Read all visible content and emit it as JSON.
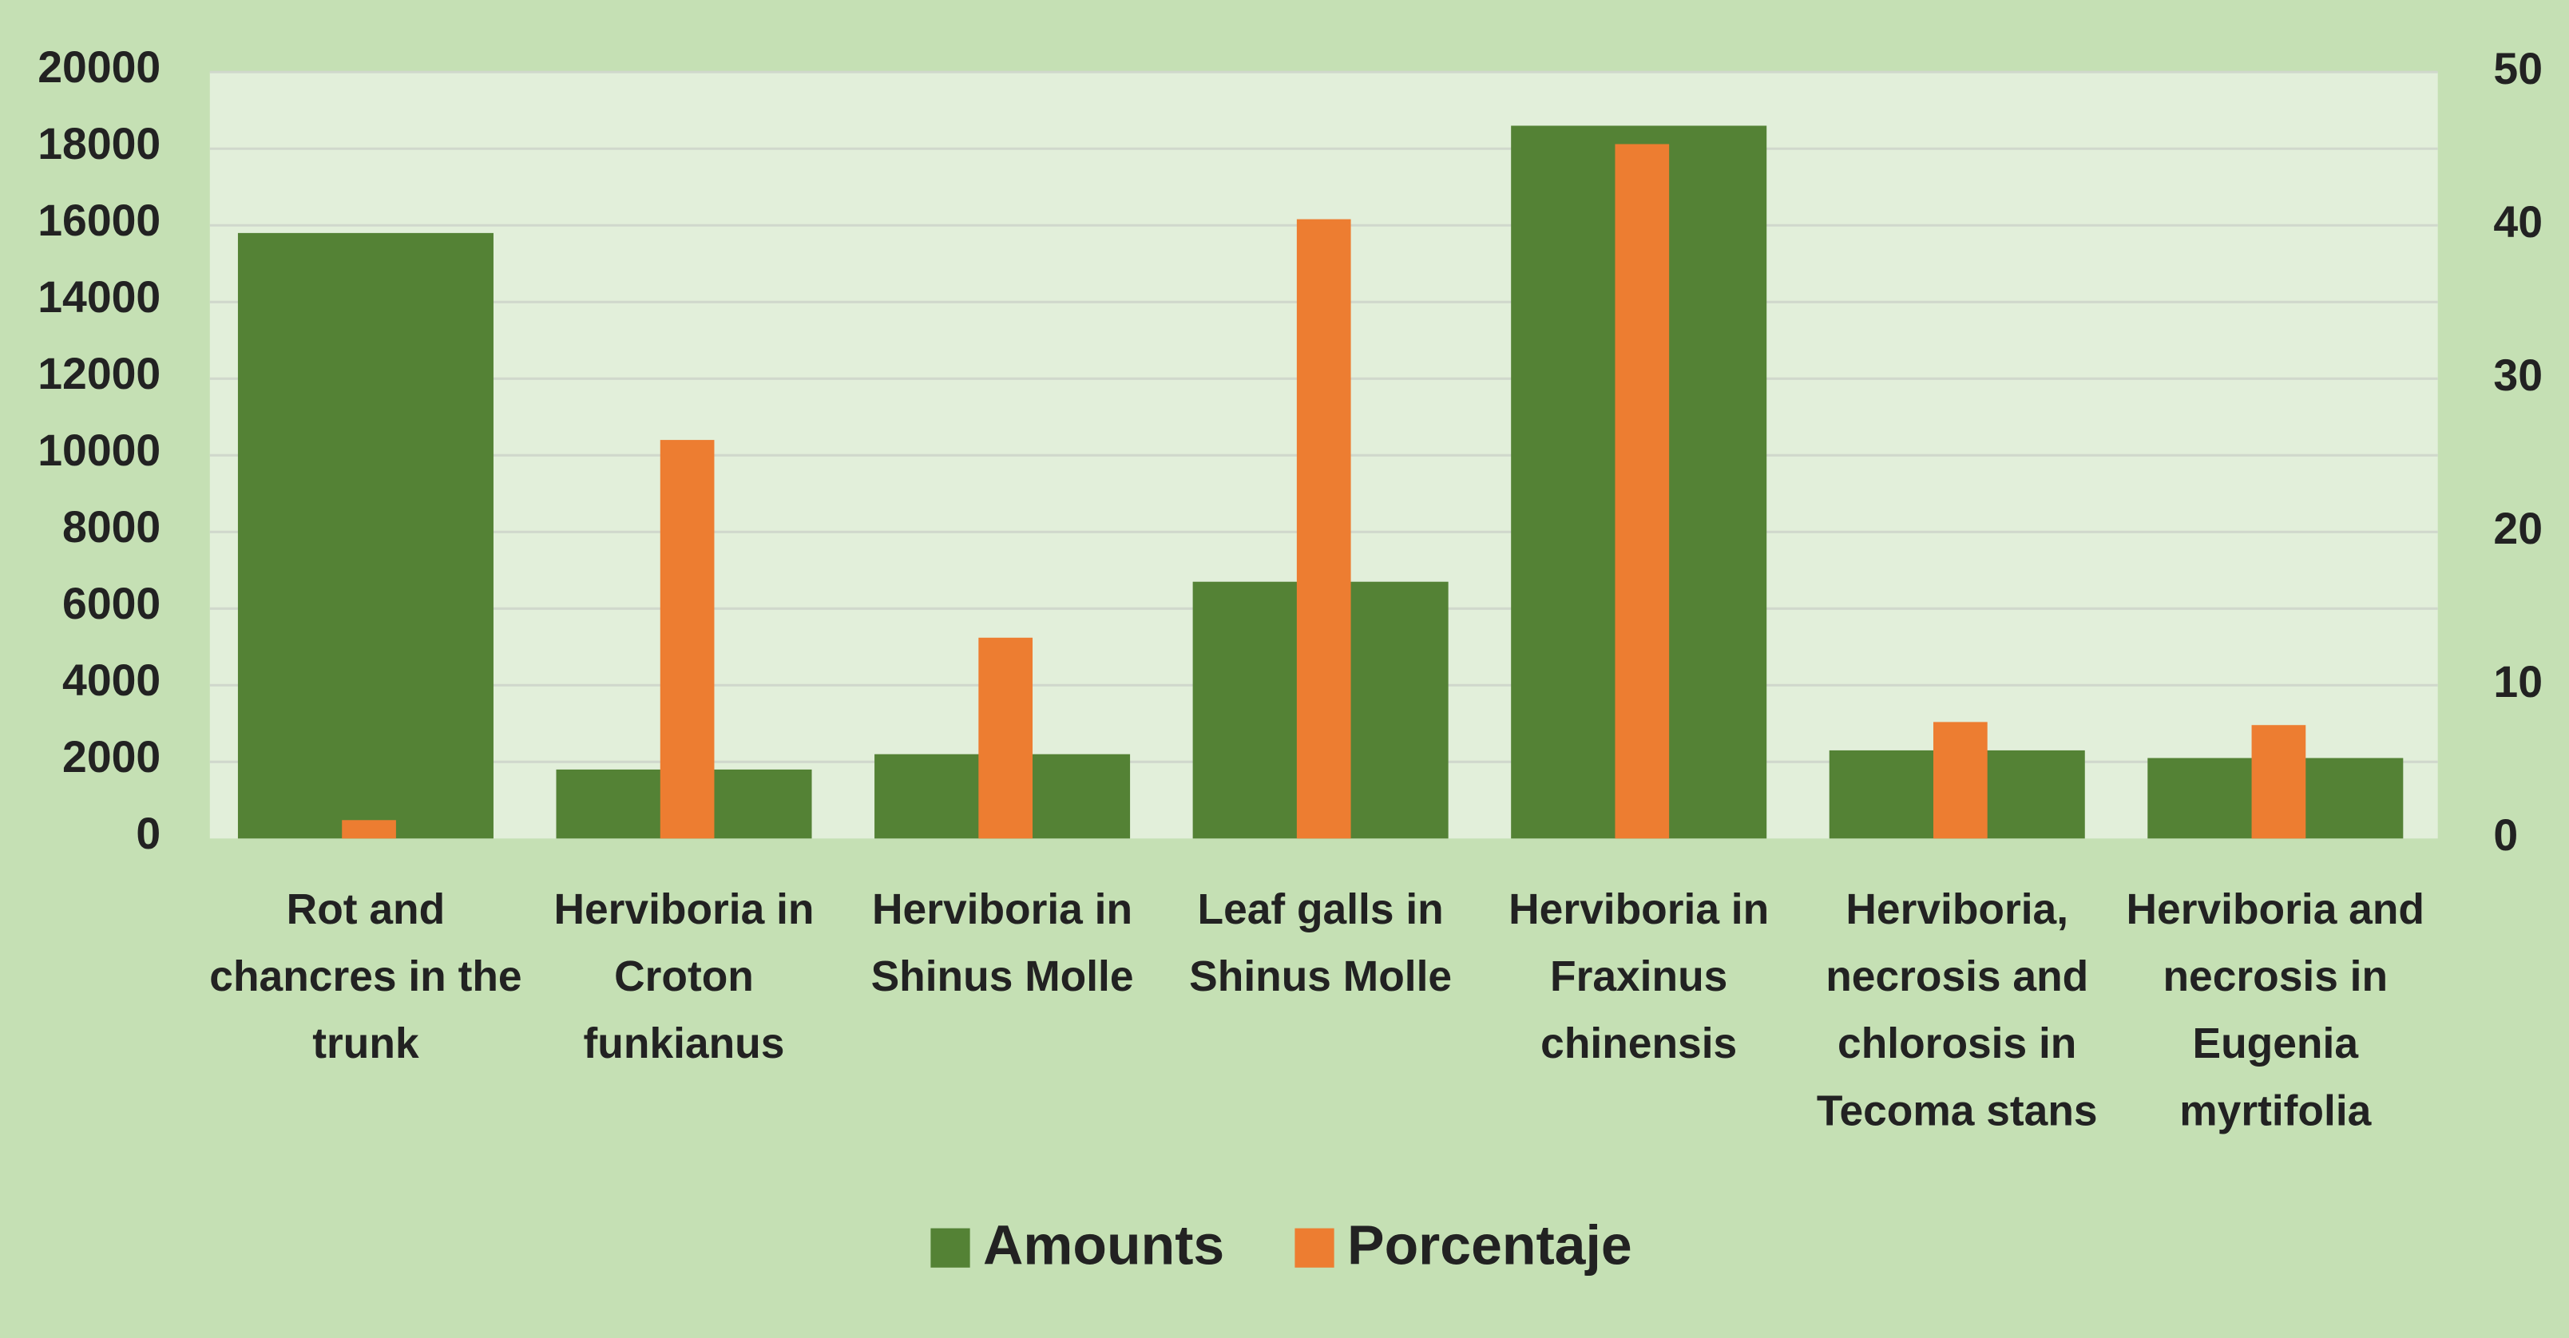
{
  "chart_data": {
    "type": "bar",
    "categories": [
      "Rot and chancres in the trunk",
      "Herviboria in Croton funkianus",
      "Herviboria in Shinus Molle",
      "Leaf galls in Shinus Molle",
      "Herviboria in Fraxinus chinensis",
      "Herviboria, necrosis and chlorosis in Tecoma stans",
      "Herviboria and necrosis in Eugenia myrtifolia"
    ],
    "series": [
      {
        "name": "Amounts",
        "color": "#548235",
        "values": [
          15800,
          1800,
          2200,
          6700,
          18600,
          2300,
          2100
        ]
      },
      {
        "name": "Porcentaje",
        "color": "#ed7d31",
        "axis": "y2",
        "values": [
          1.2,
          26.0,
          13.1,
          40.4,
          45.3,
          7.6,
          7.4
        ]
      }
    ],
    "ylim": [
      0,
      20000
    ],
    "yticks": [
      0,
      2000,
      4000,
      6000,
      8000,
      10000,
      12000,
      14000,
      16000,
      18000,
      20000
    ],
    "y2lim": [
      0,
      50
    ],
    "y2ticks": [
      0,
      10,
      20,
      30,
      40,
      50
    ],
    "grid": true,
    "legend": "bottom"
  }
}
